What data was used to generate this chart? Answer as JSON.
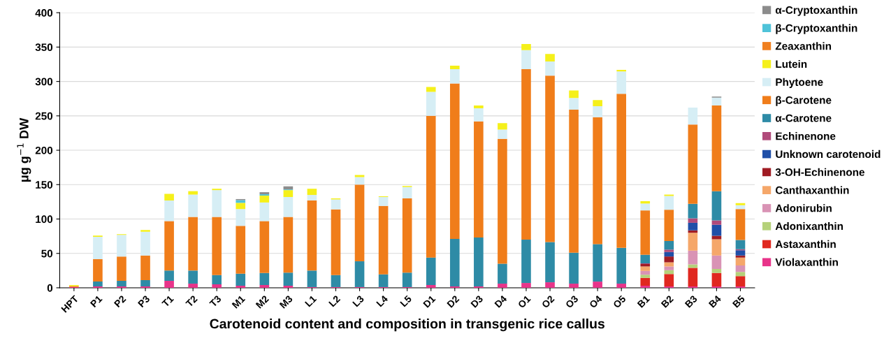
{
  "chart_data": {
    "type": "bar",
    "stacked": true,
    "xlabel": "Carotenoid content and composition in transgenic rice callus",
    "ylabel": "μg g$^{−1}$ DW",
    "categories": [
      "HPT",
      "P1",
      "P2",
      "P3",
      "T1",
      "T2",
      "T3",
      "M1",
      "M2",
      "M3",
      "L1",
      "L2",
      "L3",
      "L4",
      "L5",
      "D1",
      "D2",
      "D3",
      "D4",
      "O1",
      "O2",
      "O3",
      "O4",
      "O5",
      "B1",
      "B2",
      "B3",
      "B4",
      "B5"
    ],
    "ylim": [
      0,
      400
    ],
    "yticks": [
      0,
      50,
      100,
      150,
      200,
      250,
      300,
      350,
      400
    ],
    "grid": "y",
    "legend": "right",
    "series": [
      {
        "name": "Violaxanthin",
        "color": "#e8348a",
        "values": [
          1,
          2,
          2,
          2,
          10,
          6,
          5,
          3,
          4,
          3,
          1,
          1,
          1,
          1,
          1,
          4,
          2,
          2,
          6,
          7,
          8,
          6,
          9,
          6,
          3,
          2,
          2,
          2,
          2
        ]
      },
      {
        "name": "Astaxanthin",
        "color": "#e0281f",
        "values": [
          0,
          0,
          0,
          0,
          0,
          0,
          0,
          0,
          0,
          0,
          0,
          0,
          0,
          0,
          0,
          0,
          0,
          0,
          0,
          0,
          0,
          0,
          0,
          0,
          11.5,
          18,
          27,
          19.5,
          15
        ]
      },
      {
        "name": "Adonixanthin",
        "color": "#b5d17a",
        "values": [
          0,
          0,
          0,
          0,
          0,
          0,
          0,
          0,
          0,
          0,
          0,
          0,
          0,
          0,
          0,
          0,
          0,
          0,
          0,
          0,
          0,
          0,
          0,
          0,
          4.5,
          5.5,
          5,
          6,
          6
        ]
      },
      {
        "name": "Adonirubin",
        "color": "#d993b5",
        "values": [
          0,
          0,
          0,
          0,
          0,
          0,
          0,
          0,
          0,
          0,
          0,
          0,
          0,
          0,
          0,
          0,
          0,
          0,
          0,
          0,
          0,
          0,
          0,
          0,
          5.5,
          5.5,
          20,
          19.5,
          9.5
        ]
      },
      {
        "name": "Canthaxanthin",
        "color": "#f5a76a",
        "values": [
          0,
          0,
          0,
          0,
          0,
          0,
          0,
          0,
          0,
          0,
          0,
          0,
          0,
          0,
          0,
          0,
          0,
          0,
          0,
          0,
          0,
          0,
          0,
          0,
          6.5,
          6,
          26,
          23.5,
          11.5
        ]
      },
      {
        "name": "3-OH-Echinenone",
        "color": "#a01c24",
        "values": [
          0,
          0,
          0,
          0,
          0,
          0,
          0,
          0,
          0,
          0,
          0,
          0,
          0,
          0,
          0,
          0,
          0,
          0,
          0,
          0,
          0,
          0,
          0,
          0,
          3.5,
          8.5,
          3.5,
          5,
          3
        ]
      },
      {
        "name": "Unknown carotenoid",
        "color": "#1f4fa8",
        "values": [
          0,
          0,
          0,
          0,
          0,
          0,
          0,
          0,
          0,
          0,
          0,
          0,
          0,
          0,
          0,
          0,
          0,
          0,
          0,
          0,
          0,
          0,
          0,
          0,
          0,
          6.5,
          11,
          16,
          7.5
        ]
      },
      {
        "name": "Echinenone",
        "color": "#b04a7a",
        "values": [
          0,
          0,
          0,
          0,
          0,
          0,
          0,
          0,
          0,
          0,
          0,
          0,
          0,
          0,
          0,
          0,
          0,
          0,
          0,
          0,
          0,
          0,
          0,
          0,
          1,
          3.5,
          6.5,
          6.5,
          1.5
        ]
      },
      {
        "name": "α-Carotene",
        "color": "#2e8ba6",
        "values": [
          0,
          7,
          8,
          9,
          15,
          19,
          13.5,
          17.5,
          17.5,
          19,
          24,
          17.5,
          37.5,
          18.5,
          21,
          40,
          69,
          71,
          29,
          63,
          58.5,
          45,
          54.5,
          52,
          12.5,
          12.5,
          21,
          42.5,
          13.5
        ]
      },
      {
        "name": "β-Carotene",
        "color": "#f07d1a",
        "values": [
          1.5,
          32.5,
          35.5,
          36,
          72,
          78,
          84.5,
          69.5,
          75.5,
          81,
          102,
          95.5,
          111.5,
          99.5,
          108,
          206,
          226,
          169,
          181.5,
          248,
          242,
          208,
          184.5,
          224,
          64.5,
          45.5,
          115.5,
          124.5,
          45
        ]
      },
      {
        "name": "Phytoene",
        "color": "#d6eef5",
        "values": [
          0,
          32.5,
          31.5,
          34.5,
          30,
          32.5,
          39,
          24.5,
          27,
          29,
          8,
          14.5,
          11,
          13,
          16.5,
          35,
          21,
          19,
          13.5,
          27.5,
          20.5,
          17,
          16,
          32.5,
          10,
          20,
          24.5,
          11.5,
          5.5
        ]
      },
      {
        "name": "Lutein",
        "color": "#f5f01a",
        "values": [
          1.5,
          2,
          1,
          2.5,
          9.5,
          5,
          2,
          9,
          10,
          10,
          9,
          1.5,
          3,
          1,
          1.5,
          7,
          5,
          4,
          9.5,
          9,
          11,
          11,
          9,
          2.5,
          3.5,
          2,
          0,
          0,
          3
        ]
      },
      {
        "name": "Zeaxanthin",
        "color": "#f08020",
        "values": [
          0,
          0,
          0,
          0,
          0,
          0,
          0,
          0,
          0,
          0,
          0,
          0,
          0,
          0,
          0,
          0,
          0,
          0,
          0,
          0,
          0,
          0,
          0,
          0,
          0,
          0,
          0,
          0,
          0
        ]
      },
      {
        "name": "β-Cryptoxanthin",
        "color": "#4fc3d9",
        "values": [
          0,
          0,
          0,
          0,
          0,
          0,
          0,
          4,
          2,
          1,
          0,
          0,
          0,
          0,
          0,
          0,
          0,
          0,
          0,
          0,
          0,
          0,
          0,
          0,
          0,
          0,
          0,
          0,
          0
        ]
      },
      {
        "name": "α-Cryptoxanthin",
        "color": "#8c8c8c",
        "values": [
          0,
          0,
          0,
          0,
          0,
          0,
          0,
          1.5,
          3,
          4.5,
          0,
          0,
          0,
          0,
          0,
          0,
          0,
          0,
          0,
          0,
          0,
          0,
          0,
          0,
          0,
          0,
          0,
          1.5,
          0
        ]
      }
    ]
  }
}
